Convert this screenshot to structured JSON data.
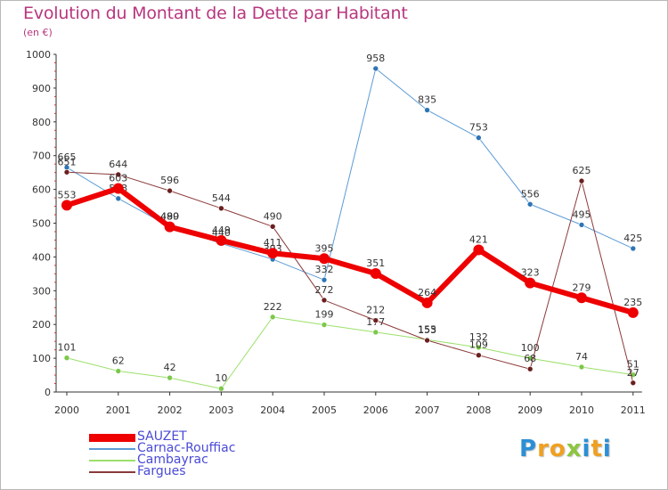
{
  "title": "Evolution du Montant de la Dette par Habitant",
  "unit": "(en €)",
  "logo": {
    "letters": [
      "P",
      "r",
      "o",
      "x",
      "i",
      "t",
      "i"
    ],
    "colors": [
      "#2b8fd6",
      "#f0a020",
      "#f0a020",
      "#8cc63f",
      "#2b8fd6",
      "#f0a020",
      "#2b8fd6"
    ]
  },
  "chart_data": {
    "type": "line",
    "x": [
      "2000",
      "2001",
      "2002",
      "2003",
      "2004",
      "2005",
      "2006",
      "2007",
      "2008",
      "2009",
      "2010",
      "2011"
    ],
    "ylim": [
      0,
      1000
    ],
    "yticks": [
      0,
      100,
      200,
      300,
      400,
      500,
      600,
      700,
      800,
      900,
      1000
    ],
    "grid": false,
    "legend_position": "bottom-left",
    "series": [
      {
        "name": "Carnac-Rouffiac",
        "color": "#5b9bd5",
        "width": 1,
        "marker_color": "#2e75b6",
        "values": [
          665,
          573,
          490,
          440,
          393,
          332,
          958,
          835,
          753,
          556,
          495,
          425
        ]
      },
      {
        "name": "Cambayrac",
        "color": "#9be06a",
        "width": 1,
        "marker_color": "#7cc84a",
        "values": [
          101,
          62,
          42,
          10,
          222,
          199,
          177,
          155,
          132,
          100,
          74,
          51
        ]
      },
      {
        "name": "Fargues",
        "color": "#8b3a3a",
        "width": 1,
        "marker_color": "#6b1f1f",
        "values": [
          651,
          644,
          596,
          544,
          490,
          272,
          212,
          153,
          109,
          68,
          625,
          27
        ]
      },
      {
        "name": "SAUZET",
        "color": "#ee0000",
        "width": 6,
        "marker_color": "#ee0000",
        "values": [
          553,
          603,
          489,
          449,
          411,
          395,
          351,
          264,
          421,
          323,
          279,
          235
        ]
      }
    ],
    "legend_order": [
      "SAUZET",
      "Carnac-Rouffiac",
      "Cambayrac",
      "Fargues"
    ]
  }
}
